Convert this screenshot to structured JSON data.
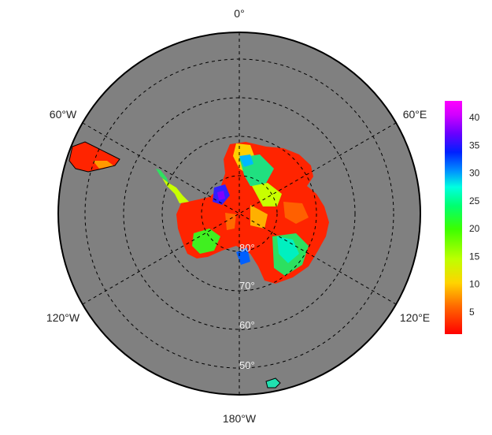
{
  "map": {
    "projection": "south-polar-stereographic",
    "ocean_color": "#808080",
    "longitude_labels": {
      "top": "0°",
      "upper_left": "60°W",
      "upper_right": "60°E",
      "lower_left": "120°W",
      "lower_right": "120°E",
      "bottom": "180°W"
    },
    "latitude_labels": [
      "80°",
      "70°",
      "60°",
      "50°"
    ]
  },
  "colorbar": {
    "ticks": [
      "5",
      "10",
      "15",
      "20",
      "25",
      "30",
      "35",
      "40"
    ],
    "colors": [
      "#ff0000",
      "#ff6a00",
      "#ffd400",
      "#bfff00",
      "#3cff00",
      "#00ff70",
      "#00ffe0",
      "#0090ff",
      "#0020ff",
      "#6a00ff",
      "#d000ff",
      "#ff00ff"
    ]
  }
}
